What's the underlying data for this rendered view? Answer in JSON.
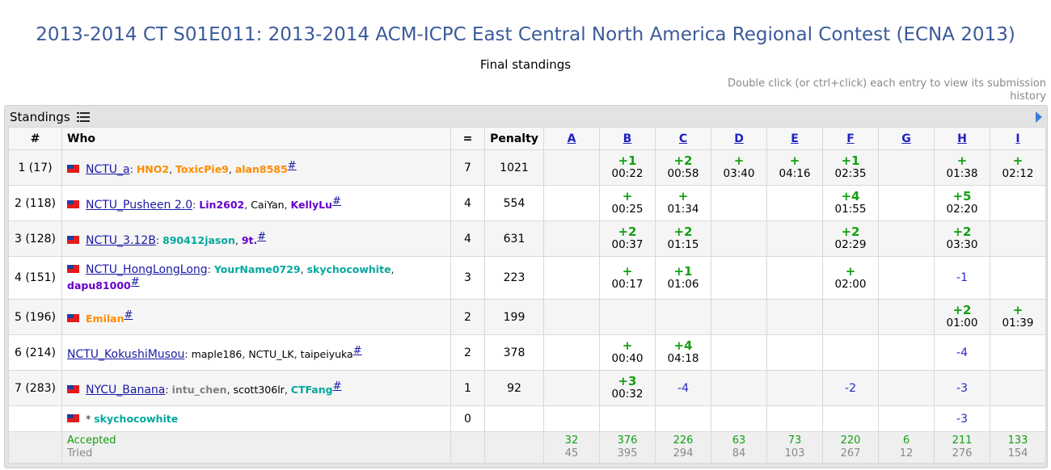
{
  "page": {
    "title": "2013-2014 CT S01E011: 2013-2014 ACM-ICPC East Central North America Regional Contest (ECNA 2013)",
    "subtitle": "Final standings",
    "hint": "Double click (or ctrl+click) each entry to view its submission history"
  },
  "panel": {
    "label": "Standings",
    "list_icon": "list-icon",
    "expand_icon": "play-arrow-icon"
  },
  "header": {
    "rank": "#",
    "who": "Who",
    "solved": "=",
    "penalty": "Penalty",
    "problems": [
      "A",
      "B",
      "C",
      "D",
      "E",
      "F",
      "G",
      "H",
      "I"
    ]
  },
  "colors": {
    "title": "#3b5a9a",
    "accepted": "#12a012",
    "rejected": "#2a2ac0",
    "orange": "#ff8c00",
    "violet": "#6600cc",
    "cyan": "#03a89e",
    "gray": "#808080",
    "black": "#000000"
  },
  "rows": [
    {
      "rank": "1 (17)",
      "flag": true,
      "team": "NCTU_a",
      "members": [
        {
          "name": "HNO2",
          "color": "#ff8c00"
        },
        {
          "name": "ToxicPie9",
          "color": "#ff8c00"
        },
        {
          "name": "alan8585",
          "color": "#ff8c00"
        }
      ],
      "solved": "7",
      "penalty": "1021",
      "cells": [
        null,
        {
          "a": "+1",
          "t": "00:22"
        },
        {
          "a": "+2",
          "t": "00:58"
        },
        {
          "a": "+",
          "t": "03:40"
        },
        {
          "a": "+",
          "t": "04:16"
        },
        {
          "a": "+1",
          "t": "02:35"
        },
        null,
        {
          "a": "+",
          "t": "01:38"
        },
        {
          "a": "+",
          "t": "02:12"
        }
      ]
    },
    {
      "rank": "2 (118)",
      "flag": true,
      "team": "NCTU_Pusheen 2.0",
      "members": [
        {
          "name": "Lin2602",
          "color": "#6600cc"
        },
        {
          "name": "CaiYan",
          "color": "#000000",
          "plain": true
        },
        {
          "name": "KellyLu",
          "color": "#6600cc"
        }
      ],
      "solved": "4",
      "penalty": "554",
      "cells": [
        null,
        {
          "a": "+",
          "t": "00:25"
        },
        {
          "a": "+",
          "t": "01:34"
        },
        null,
        null,
        {
          "a": "+4",
          "t": "01:55"
        },
        null,
        {
          "a": "+5",
          "t": "02:20"
        },
        null
      ]
    },
    {
      "rank": "3 (128)",
      "flag": true,
      "team": "NCTU_3.12B",
      "members": [
        {
          "name": "890412jason",
          "color": "#03a89e"
        },
        {
          "name": "9t.",
          "color": "#6600cc"
        }
      ],
      "solved": "4",
      "penalty": "631",
      "cells": [
        null,
        {
          "a": "+2",
          "t": "00:37"
        },
        {
          "a": "+2",
          "t": "01:15"
        },
        null,
        null,
        {
          "a": "+2",
          "t": "02:29"
        },
        null,
        {
          "a": "+2",
          "t": "03:30"
        },
        null
      ]
    },
    {
      "rank": "4 (151)",
      "flag": true,
      "team": "NCTU_HongLongLong",
      "members": [
        {
          "name": "YourName0729",
          "color": "#03a89e"
        },
        {
          "name": "skychocowhite",
          "color": "#03a89e"
        },
        {
          "name": "dapu81000",
          "color": "#6600cc"
        }
      ],
      "solved": "3",
      "penalty": "223",
      "cells": [
        null,
        {
          "a": "+",
          "t": "00:17"
        },
        {
          "a": "+1",
          "t": "01:06"
        },
        null,
        null,
        {
          "a": "+",
          "t": "02:00"
        },
        null,
        {
          "r": "-1"
        },
        null
      ]
    },
    {
      "rank": "5 (196)",
      "flag": true,
      "team": "",
      "members": [
        {
          "name": "Emilan",
          "color": "#ff8c00"
        }
      ],
      "solved": "2",
      "penalty": "199",
      "cells": [
        null,
        null,
        null,
        null,
        null,
        null,
        null,
        {
          "a": "+2",
          "t": "01:00"
        },
        {
          "a": "+",
          "t": "01:39"
        }
      ]
    },
    {
      "rank": "6 (214)",
      "flag": false,
      "team": "NCTU_KokushiMusou",
      "members": [
        {
          "name": "maple186",
          "color": "#000000",
          "plain": true
        },
        {
          "name": "NCTU_LK",
          "color": "#000000",
          "plain": true
        },
        {
          "name": "taipeiyuka",
          "color": "#000000",
          "plain": true
        }
      ],
      "solved": "2",
      "penalty": "378",
      "cells": [
        null,
        {
          "a": "+",
          "t": "00:40"
        },
        {
          "a": "+4",
          "t": "04:18"
        },
        null,
        null,
        null,
        null,
        {
          "r": "-4"
        },
        null
      ]
    },
    {
      "rank": "7 (283)",
      "flag": true,
      "team": "NYCU_Banana",
      "members": [
        {
          "name": "intu_chen",
          "color": "#808080"
        },
        {
          "name": "scott306lr",
          "color": "#000000",
          "plain": true
        },
        {
          "name": "CTFang",
          "color": "#03a89e"
        }
      ],
      "solved": "1",
      "penalty": "92",
      "cells": [
        null,
        {
          "a": "+3",
          "t": "00:32"
        },
        {
          "r": "-4"
        },
        null,
        null,
        {
          "r": "-2"
        },
        null,
        {
          "r": "-3"
        },
        null
      ]
    }
  ],
  "virtual": {
    "flag": true,
    "prefix": "*",
    "name": "skychocowhite",
    "color": "#03a89e",
    "solved": "0",
    "cells": [
      null,
      null,
      null,
      null,
      null,
      null,
      null,
      {
        "r": "-3"
      },
      null
    ]
  },
  "stats": {
    "accepted_label": "Accepted",
    "tried_label": "Tried",
    "accepted": [
      "32",
      "376",
      "226",
      "63",
      "73",
      "220",
      "6",
      "211",
      "133"
    ],
    "tried": [
      "45",
      "395",
      "294",
      "84",
      "103",
      "267",
      "12",
      "276",
      "154"
    ]
  },
  "hash_symbol": "#"
}
